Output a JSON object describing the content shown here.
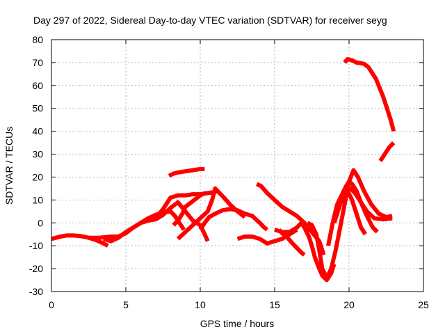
{
  "chart_data": {
    "type": "scatter",
    "title": "Day 297 of 2022, Sidereal Day-to-day VTEC variation (SDTVAR) for receiver seyg",
    "xlabel": "GPS time / hours",
    "ylabel": "SDTVAR / TECUs",
    "xlim": [
      0,
      25
    ],
    "ylim": [
      -30,
      80
    ],
    "xticks": [
      0,
      5,
      10,
      15,
      20,
      25
    ],
    "yticks": [
      -30,
      -20,
      -10,
      0,
      10,
      20,
      30,
      40,
      50,
      60,
      70,
      80
    ],
    "grid": true,
    "marker_color": "#ff0000",
    "series": [
      {
        "name": "s1",
        "points": [
          [
            0,
            -7
          ],
          [
            0.3,
            -6.5
          ],
          [
            0.6,
            -6
          ],
          [
            1,
            -5.5
          ],
          [
            1.5,
            -5.5
          ],
          [
            2,
            -5.8
          ],
          [
            2.5,
            -6.5
          ],
          [
            3,
            -7.5
          ],
          [
            3.5,
            -9
          ],
          [
            3.8,
            -10
          ]
        ]
      },
      {
        "name": "s2",
        "points": [
          [
            2.5,
            -6.5
          ],
          [
            3.2,
            -6.5
          ],
          [
            4,
            -6
          ],
          [
            4.5,
            -6
          ],
          [
            5,
            -4.5
          ],
          [
            5.5,
            -2
          ],
          [
            6,
            0
          ],
          [
            6.5,
            2
          ],
          [
            7,
            3.5
          ],
          [
            7.5,
            4.5
          ],
          [
            8,
            5
          ],
          [
            8.3,
            3
          ],
          [
            8.6,
            0
          ],
          [
            8.9,
            -3
          ]
        ]
      },
      {
        "name": "s3",
        "points": [
          [
            3.5,
            -7
          ],
          [
            4,
            -8
          ],
          [
            4.5,
            -6.5
          ],
          [
            5,
            -4
          ],
          [
            5.5,
            -2
          ],
          [
            6,
            0
          ],
          [
            6.5,
            1
          ],
          [
            7,
            1.5
          ],
          [
            7.5,
            3.5
          ],
          [
            8,
            6.5
          ],
          [
            8.5,
            9
          ],
          [
            9,
            5
          ],
          [
            9.5,
            1
          ],
          [
            10,
            -1
          ],
          [
            10.3,
            -5
          ],
          [
            10.5,
            -8
          ]
        ]
      },
      {
        "name": "s4",
        "points": [
          [
            6,
            0
          ],
          [
            6.5,
            1
          ],
          [
            7,
            2
          ],
          [
            7.5,
            6
          ],
          [
            7.8,
            9
          ],
          [
            8,
            11
          ],
          [
            8.5,
            12
          ],
          [
            9,
            12
          ],
          [
            9.5,
            12.5
          ],
          [
            10,
            12.5
          ],
          [
            10.5,
            13
          ],
          [
            11,
            13.5
          ],
          [
            11.2,
            14
          ]
        ]
      },
      {
        "name": "s5",
        "points": [
          [
            7.9,
            20.5
          ],
          [
            8.2,
            21.5
          ],
          [
            8.5,
            22
          ],
          [
            9,
            22.5
          ],
          [
            9.5,
            23
          ],
          [
            10,
            23.5
          ],
          [
            10.3,
            23.5
          ]
        ]
      },
      {
        "name": "s6",
        "points": [
          [
            8.2,
            -1
          ],
          [
            8.5,
            1
          ],
          [
            8.8,
            4
          ],
          [
            9,
            7
          ],
          [
            9.5,
            9.5
          ],
          [
            10,
            12
          ],
          [
            10.3,
            13
          ]
        ]
      },
      {
        "name": "s7",
        "points": [
          [
            8.5,
            -7
          ],
          [
            9,
            -4
          ],
          [
            9.5,
            -1
          ],
          [
            10,
            2
          ],
          [
            10.5,
            5
          ],
          [
            10.8,
            10
          ],
          [
            11,
            15
          ],
          [
            11.3,
            13
          ],
          [
            11.6,
            11
          ],
          [
            12,
            8
          ],
          [
            12.5,
            5
          ],
          [
            13,
            2.5
          ]
        ]
      },
      {
        "name": "s8",
        "points": [
          [
            10,
            -3
          ],
          [
            10.3,
            0
          ],
          [
            10.6,
            2.5
          ],
          [
            11,
            4
          ],
          [
            11.5,
            5.5
          ],
          [
            12,
            6
          ],
          [
            12.5,
            5.5
          ],
          [
            13,
            4
          ],
          [
            13.5,
            3
          ],
          [
            14,
            0
          ],
          [
            14.3,
            -2
          ],
          [
            14.5,
            -3
          ]
        ]
      },
      {
        "name": "s9",
        "points": [
          [
            12.5,
            -7
          ],
          [
            13,
            -6
          ],
          [
            13.5,
            -6
          ],
          [
            14,
            -7
          ],
          [
            14.5,
            -9
          ],
          [
            15,
            -8
          ],
          [
            15.5,
            -7
          ],
          [
            16,
            -5
          ],
          [
            16.5,
            -3
          ]
        ]
      },
      {
        "name": "s10",
        "points": [
          [
            13.8,
            17
          ],
          [
            14.1,
            16
          ],
          [
            14.5,
            13
          ],
          [
            15,
            10
          ],
          [
            15.5,
            7
          ],
          [
            16,
            5
          ],
          [
            16.5,
            3
          ],
          [
            17,
            0
          ],
          [
            17.5,
            -4
          ],
          [
            18,
            -8
          ],
          [
            18.3,
            -14
          ]
        ]
      },
      {
        "name": "s11",
        "points": [
          [
            15,
            -3
          ],
          [
            15.5,
            -4
          ],
          [
            16,
            -4
          ],
          [
            16.5,
            -2
          ],
          [
            16.8,
            0
          ],
          [
            17,
            -2
          ],
          [
            17.3,
            -6
          ],
          [
            17.5,
            -10
          ],
          [
            17.7,
            -15
          ],
          [
            18,
            -20
          ],
          [
            18.2,
            -23
          ],
          [
            18.5,
            -25
          ],
          [
            18.8,
            -22
          ],
          [
            19,
            -18
          ]
        ]
      },
      {
        "name": "s12",
        "points": [
          [
            15.3,
            -3
          ],
          [
            15.5,
            -4.5
          ],
          [
            15.8,
            -6
          ],
          [
            16.2,
            -9
          ],
          [
            16.5,
            -11
          ],
          [
            16.8,
            -13
          ],
          [
            17,
            -14
          ]
        ]
      },
      {
        "name": "s13",
        "points": [
          [
            17.2,
            0
          ],
          [
            17.5,
            -1
          ],
          [
            17.8,
            -5
          ],
          [
            18,
            -12
          ],
          [
            18.2,
            -20
          ],
          [
            18.5,
            -24
          ],
          [
            18.8,
            -20
          ],
          [
            19.1,
            -12
          ],
          [
            19.4,
            -2
          ],
          [
            19.7,
            8
          ],
          [
            20,
            18
          ],
          [
            20.3,
            23
          ],
          [
            20.6,
            20
          ],
          [
            21,
            14
          ],
          [
            21.5,
            8
          ],
          [
            22,
            4
          ],
          [
            22.5,
            2.5
          ],
          [
            22.9,
            3
          ]
        ]
      },
      {
        "name": "s14",
        "points": [
          [
            18.6,
            -10
          ],
          [
            18.9,
            0
          ],
          [
            19.2,
            8
          ],
          [
            19.5,
            12
          ],
          [
            19.8,
            16
          ],
          [
            20,
            18
          ],
          [
            20.2,
            17
          ],
          [
            20.5,
            14
          ],
          [
            20.8,
            9
          ],
          [
            21.2,
            3
          ],
          [
            21.6,
            -2
          ],
          [
            21.9,
            -4
          ]
        ]
      },
      {
        "name": "s15",
        "points": [
          [
            19,
            0
          ],
          [
            19.3,
            6
          ],
          [
            19.6,
            12
          ],
          [
            19.9,
            14
          ],
          [
            20.2,
            10
          ],
          [
            20.5,
            4
          ],
          [
            20.8,
            -2
          ],
          [
            21.1,
            -5
          ]
        ]
      },
      {
        "name": "s16",
        "points": [
          [
            19.5,
            9
          ],
          [
            19.8,
            14
          ],
          [
            20.1,
            15
          ],
          [
            20.4,
            13
          ],
          [
            20.8,
            9
          ],
          [
            21.2,
            5
          ],
          [
            21.7,
            2
          ],
          [
            22.3,
            1.5
          ],
          [
            22.9,
            2
          ]
        ]
      },
      {
        "name": "s17",
        "points": [
          [
            19.7,
            70
          ],
          [
            19.9,
            71.5
          ],
          [
            20.2,
            71
          ],
          [
            20.5,
            70
          ],
          [
            21,
            69.5
          ],
          [
            21.3,
            68
          ],
          [
            21.8,
            63
          ],
          [
            22.3,
            55
          ],
          [
            22.8,
            45
          ],
          [
            23,
            40
          ]
        ]
      },
      {
        "name": "s18",
        "points": [
          [
            22.1,
            27
          ],
          [
            22.4,
            30
          ],
          [
            22.7,
            33
          ],
          [
            23,
            35
          ]
        ]
      }
    ]
  }
}
